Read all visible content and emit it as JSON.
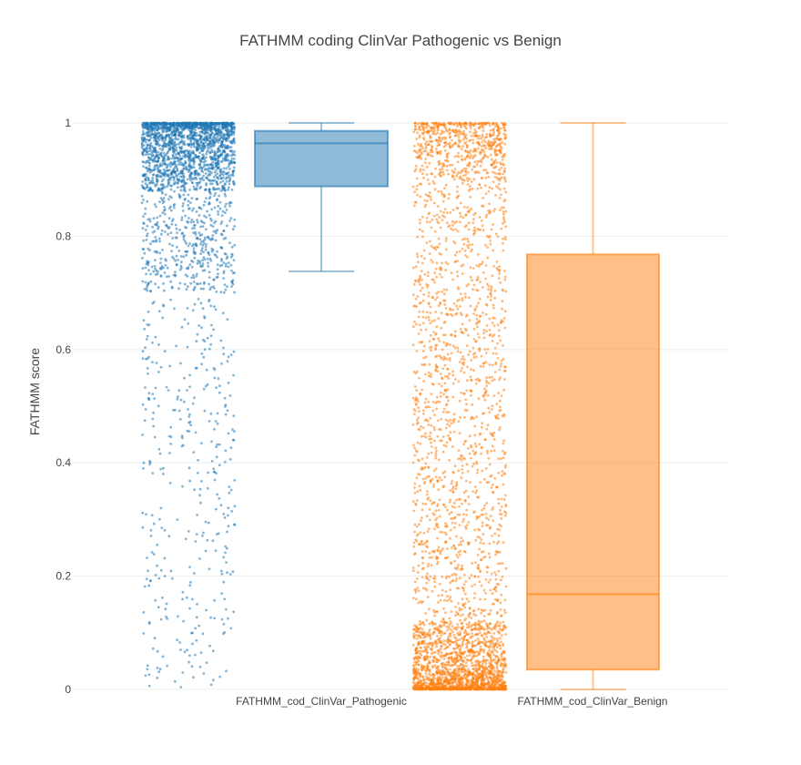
{
  "chart_data": {
    "type": "box",
    "title": "FATHMM coding ClinVar Pathogenic vs Benign",
    "xlabel": "",
    "ylabel": "FATHMM score",
    "ylim": [
      0,
      1
    ],
    "yticks": [
      0,
      0.2,
      0.4,
      0.6,
      0.8,
      1
    ],
    "ytick_labels": [
      "0",
      "0.2",
      "0.4",
      "0.6",
      "0.8",
      "1"
    ],
    "grid": true,
    "legend": "none",
    "categories": [
      "FATHMM_cod_ClinVar_Pathogenic",
      "FATHMM_cod_ClinVar_Benign"
    ],
    "series": [
      {
        "category": "FATHMM_cod_ClinVar_Pathogenic",
        "color": "#1f77b4",
        "box": {
          "min": 0.738,
          "q1": 0.888,
          "median": 0.964,
          "q3": 0.986,
          "max": 1.0
        },
        "points": "all",
        "distribution": "skewed-high"
      },
      {
        "category": "FATHMM_cod_ClinVar_Benign",
        "color": "#ff7f0e",
        "box": {
          "min": 0.0,
          "q1": 0.035,
          "median": 0.168,
          "q3": 0.768,
          "max": 1.0
        },
        "points": "all",
        "distribution": "u-shaped-low-heavy"
      }
    ]
  }
}
